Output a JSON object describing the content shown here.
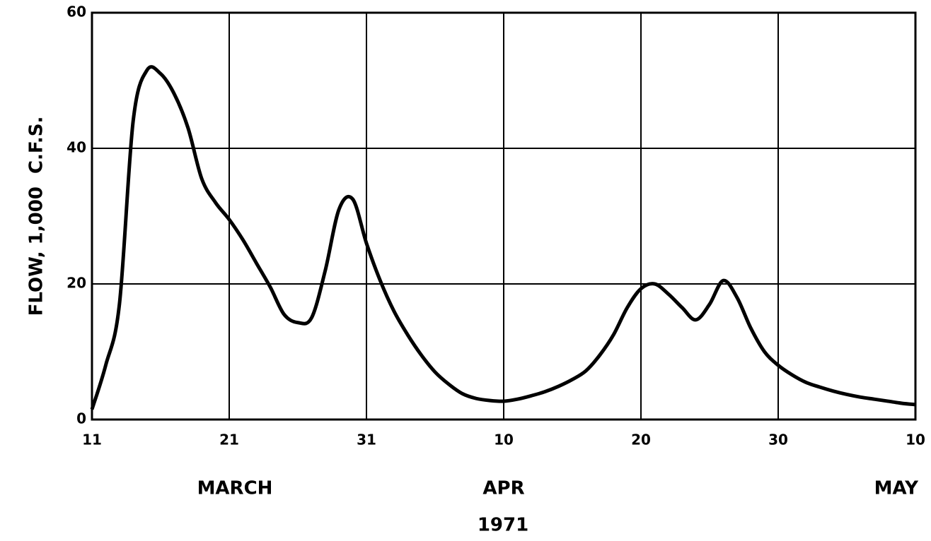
{
  "chart_data": {
    "type": "line",
    "y_label": "FLOW, 1,000  C.F.S.",
    "x_label": "1971",
    "month_labels": [
      {
        "label": "MARCH",
        "value": "1971-03-21"
      },
      {
        "label": "APR",
        "value": "1971-04-10"
      },
      {
        "label": "MAY",
        "value": "1971-05-10"
      }
    ],
    "xlim": [
      "1971-03-11",
      "1971-05-10"
    ],
    "xticks": [
      {
        "value": "1971-03-11",
        "label": "11"
      },
      {
        "value": "1971-03-21",
        "label": "21"
      },
      {
        "value": "1971-03-31",
        "label": "31"
      },
      {
        "value": "1971-04-10",
        "label": "10"
      },
      {
        "value": "1971-04-20",
        "label": "20"
      },
      {
        "value": "1971-04-30",
        "label": "30"
      },
      {
        "value": "1971-05-10",
        "label": "10"
      }
    ],
    "ylim": [
      0,
      60
    ],
    "yticks": [
      0,
      20,
      40,
      60
    ],
    "grid": true,
    "color": "#000000",
    "x": [
      "1971-03-11",
      "1971-03-12",
      "1971-03-13",
      "1971-03-14",
      "1971-03-15",
      "1971-03-16",
      "1971-03-17",
      "1971-03-18",
      "1971-03-19",
      "1971-03-20",
      "1971-03-21",
      "1971-03-22",
      "1971-03-23",
      "1971-03-24",
      "1971-03-25",
      "1971-03-26",
      "1971-03-27",
      "1971-03-28",
      "1971-03-29",
      "1971-03-30",
      "1971-03-31",
      "1971-04-01",
      "1971-04-02",
      "1971-04-03",
      "1971-04-04",
      "1971-04-05",
      "1971-04-06",
      "1971-04-07",
      "1971-04-08",
      "1971-04-09",
      "1971-04-10",
      "1971-04-11",
      "1971-04-12",
      "1971-04-13",
      "1971-04-14",
      "1971-04-15",
      "1971-04-16",
      "1971-04-17",
      "1971-04-18",
      "1971-04-19",
      "1971-04-20",
      "1971-04-21",
      "1971-04-22",
      "1971-04-23",
      "1971-04-24",
      "1971-04-25",
      "1971-04-26",
      "1971-04-27",
      "1971-04-28",
      "1971-04-29",
      "1971-04-30",
      "1971-05-01",
      "1971-05-02",
      "1971-05-03",
      "1971-05-04",
      "1971-05-05",
      "1971-05-06",
      "1971-05-07",
      "1971-05-08",
      "1971-05-09",
      "1971-05-10"
    ],
    "values": [
      1.5,
      8,
      17,
      44,
      51.5,
      51,
      48,
      43,
      35.5,
      32,
      29.5,
      26.5,
      23,
      19.5,
      15.5,
      14.3,
      15,
      22,
      31,
      32.5,
      26,
      20.5,
      16,
      12.5,
      9.5,
      7,
      5.2,
      3.8,
      3.1,
      2.8,
      2.7,
      3,
      3.5,
      4.1,
      4.9,
      5.9,
      7.2,
      9.5,
      12.5,
      16.5,
      19.3,
      20,
      18.5,
      16.5,
      14.7,
      17,
      20.5,
      18,
      13.5,
      10,
      8,
      6.6,
      5.5,
      4.8,
      4.2,
      3.7,
      3.3,
      3,
      2.7,
      2.4,
      2.2
    ]
  }
}
